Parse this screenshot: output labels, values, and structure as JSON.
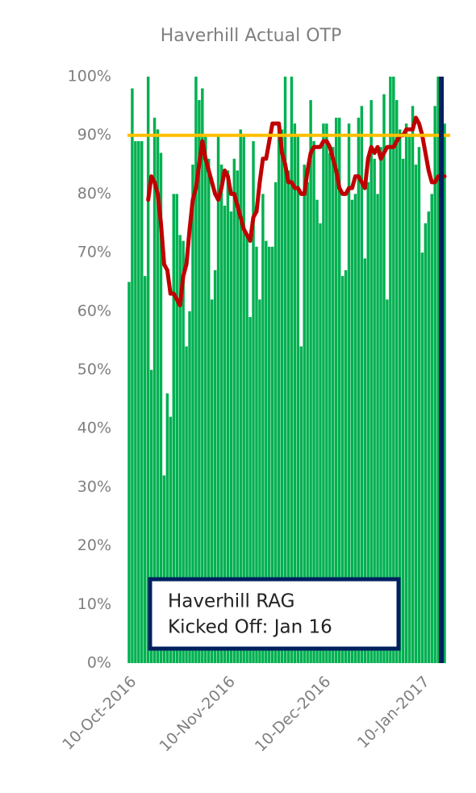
{
  "chart_data": {
    "type": "bar",
    "title": "Haverhill Actual OTP",
    "x": [
      "2016-10-10",
      "2016-10-11",
      "2016-10-12",
      "2016-10-13",
      "2016-10-14",
      "2016-10-15",
      "2016-10-16",
      "2016-10-17",
      "2016-10-18",
      "2016-10-19",
      "2016-10-20",
      "2016-10-21",
      "2016-10-22",
      "2016-10-23",
      "2016-10-24",
      "2016-10-25",
      "2016-10-26",
      "2016-10-27",
      "2016-10-28",
      "2016-10-29",
      "2016-10-30",
      "2016-10-31",
      "2016-11-01",
      "2016-11-02",
      "2016-11-03",
      "2016-11-04",
      "2016-11-05",
      "2016-11-06",
      "2016-11-07",
      "2016-11-08",
      "2016-11-09",
      "2016-11-10",
      "2016-11-11",
      "2016-11-12",
      "2016-11-13",
      "2016-11-14",
      "2016-11-15",
      "2016-11-16",
      "2016-11-17",
      "2016-11-18",
      "2016-11-19",
      "2016-11-20",
      "2016-11-21",
      "2016-11-22",
      "2016-11-23",
      "2016-11-24",
      "2016-11-25",
      "2016-11-26",
      "2016-11-27",
      "2016-11-28",
      "2016-11-29",
      "2016-11-30",
      "2016-12-01",
      "2016-12-02",
      "2016-12-03",
      "2016-12-04",
      "2016-12-05",
      "2016-12-06",
      "2016-12-07",
      "2016-12-08",
      "2016-12-09",
      "2016-12-10",
      "2016-12-11",
      "2016-12-12",
      "2016-12-13",
      "2016-12-14",
      "2016-12-15",
      "2016-12-16",
      "2016-12-17",
      "2016-12-18",
      "2016-12-19",
      "2016-12-20",
      "2016-12-21",
      "2016-12-22",
      "2016-12-23",
      "2016-12-24",
      "2016-12-25",
      "2016-12-26",
      "2016-12-27",
      "2016-12-28",
      "2016-12-29",
      "2016-12-30",
      "2016-12-31",
      "2017-01-01",
      "2017-01-02",
      "2017-01-03",
      "2017-01-04",
      "2017-01-05",
      "2017-01-06",
      "2017-01-07",
      "2017-01-08",
      "2017-01-09",
      "2017-01-10",
      "2017-01-11",
      "2017-01-12",
      "2017-01-13",
      "2017-01-14",
      "2017-01-15",
      "2017-01-16",
      "2017-01-17"
    ],
    "series": [
      {
        "type": "bar",
        "color": "#00b050",
        "values": [
          65,
          98,
          89,
          89,
          89,
          66,
          100,
          50,
          93,
          91,
          87,
          32,
          46,
          42,
          80,
          80,
          73,
          72,
          54,
          60,
          85,
          100,
          96,
          98,
          90,
          86,
          62,
          67,
          90,
          85,
          78,
          84,
          77,
          86,
          84,
          91,
          90,
          73,
          59,
          89,
          71,
          62,
          80,
          72,
          71,
          71,
          82,
          92,
          91,
          100,
          84,
          100,
          92,
          90,
          54,
          85,
          82,
          96,
          89,
          79,
          75,
          92,
          92,
          87,
          88,
          93,
          93,
          66,
          67,
          92,
          79,
          80,
          93,
          95,
          69,
          82,
          96,
          86,
          80,
          88,
          97,
          62,
          100,
          100,
          96,
          91,
          86,
          92,
          90,
          95,
          85,
          88,
          70,
          75,
          77,
          80,
          95,
          100,
          92,
          92
        ]
      },
      {
        "type": "line",
        "color": "#c00000",
        "values": [
          null,
          null,
          null,
          null,
          null,
          null,
          79,
          83,
          82,
          80,
          75,
          68,
          67,
          63,
          63,
          62,
          61,
          66,
          68,
          74,
          79,
          81,
          85,
          89,
          86,
          84,
          82,
          80,
          79,
          81,
          84,
          83,
          80,
          80,
          78,
          76,
          74,
          73,
          72,
          76,
          77,
          82,
          86,
          86,
          89,
          92,
          92,
          92,
          87,
          85,
          82,
          82,
          81,
          81,
          80,
          80,
          84,
          87,
          88,
          88,
          88,
          89,
          89,
          88,
          86,
          84,
          81,
          80,
          80,
          81,
          81,
          83,
          83,
          82,
          81,
          86,
          88,
          87,
          88,
          86,
          87,
          88,
          88,
          88,
          89,
          90,
          90,
          91,
          91,
          91,
          93,
          92,
          90,
          87,
          84,
          82,
          82,
          83,
          83,
          83
        ]
      }
    ],
    "target": 90,
    "target_color": "#ffc000",
    "marker_x": "2017-01-16",
    "marker_color": "#002060",
    "annotation": [
      "Haverhill RAG",
      "Kicked Off: Jan 16"
    ],
    "xlim": [
      "2016-10-10",
      "2017-01-17"
    ],
    "xticks": [
      {
        "value": "2016-10-10",
        "label": "10-Oct-2016"
      },
      {
        "value": "2016-11-10",
        "label": "10-Nov-2016"
      },
      {
        "value": "2016-12-10",
        "label": "10-Dec-2016"
      },
      {
        "value": "2017-01-10",
        "label": "10-Jan-2017"
      }
    ],
    "ylim": [
      0,
      100
    ],
    "yticks": [
      {
        "value": 0,
        "label": "0%"
      },
      {
        "value": 10,
        "label": "10%"
      },
      {
        "value": 20,
        "label": "20%"
      },
      {
        "value": 30,
        "label": "30%"
      },
      {
        "value": 40,
        "label": "40%"
      },
      {
        "value": 50,
        "label": "50%"
      },
      {
        "value": 60,
        "label": "60%"
      },
      {
        "value": 70,
        "label": "70%"
      },
      {
        "value": 80,
        "label": "80%"
      },
      {
        "value": 90,
        "label": "90%"
      },
      {
        "value": 100,
        "label": "100%"
      }
    ]
  }
}
